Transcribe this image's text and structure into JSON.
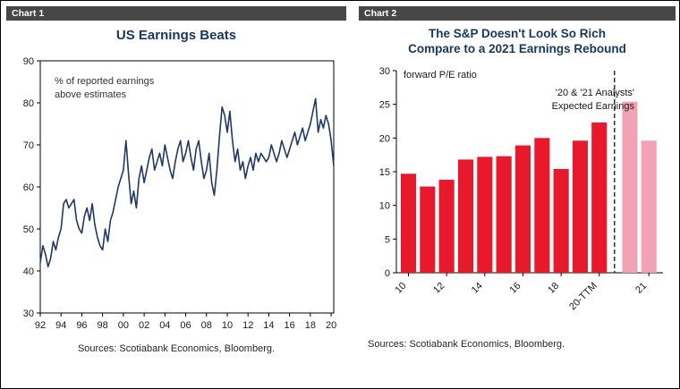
{
  "panels": [
    {
      "header": "Chart 1",
      "title": "US Earnings Beats",
      "source": "Sources: Scotiabank Economics, Bloomberg."
    },
    {
      "header": "Chart 2",
      "title_line1": "The S&P Doesn't Look So Rich",
      "title_line2": "Compare to a 2021 Earnings Rebound",
      "source": "Sources: Scotiabank Economics, Bloomberg."
    }
  ],
  "colors": {
    "banner_bg": "#474747",
    "banner_text": "#ffffff",
    "title_navy": "#17375D",
    "line_navy": "#1F3864",
    "bar_red": "#E8182D",
    "bar_pink": "#F1A3B5",
    "axis_black": "#000000"
  },
  "chart_data": [
    {
      "type": "line",
      "title": "US Earnings Beats",
      "annotation_lines": [
        "% of reported earnings",
        "above estimates"
      ],
      "ylim": [
        30,
        90
      ],
      "yticks": [
        30,
        40,
        50,
        60,
        70,
        80,
        90
      ],
      "xtick_labels": [
        "92",
        "94",
        "96",
        "98",
        "00",
        "02",
        "04",
        "06",
        "08",
        "10",
        "12",
        "14",
        "16",
        "18",
        "20"
      ],
      "points_per_tick": 8,
      "line_color": "#1F3864",
      "grid": false,
      "values": [
        42,
        46,
        44,
        41,
        43,
        47,
        45,
        48,
        50,
        56,
        57,
        55,
        56,
        57,
        52,
        50,
        49,
        53,
        55,
        52,
        56,
        51,
        48,
        46,
        45,
        50,
        47,
        52,
        54,
        57,
        60,
        62,
        64,
        71,
        63,
        56,
        59,
        55,
        62,
        65,
        61,
        64,
        67,
        69,
        64,
        66,
        68,
        65,
        70,
        67,
        64,
        62,
        66,
        69,
        71,
        66,
        68,
        71,
        67,
        64,
        69,
        71,
        66,
        62,
        64,
        68,
        61,
        58,
        64,
        72,
        79,
        77,
        73,
        78,
        71,
        66,
        69,
        64,
        66,
        62,
        65,
        67,
        64,
        68,
        66,
        68,
        67,
        66,
        67,
        70,
        68,
        66,
        68,
        71,
        69,
        67,
        69,
        71,
        73,
        70,
        72,
        74,
        71,
        73,
        75,
        78,
        81,
        73,
        76,
        74,
        77,
        75,
        71,
        65
      ]
    },
    {
      "type": "bar",
      "title": "The S&P Doesn't Look So Rich Compare to a 2021 Earnings Rebound",
      "ylabel": "forward P/E ratio",
      "annotation_lines": [
        "'20 & '21 Analysts'",
        "Expected Earnings"
      ],
      "ylim": [
        0,
        30
      ],
      "yticks": [
        0,
        5,
        10,
        15,
        20,
        25,
        30
      ],
      "values": [
        14.7,
        12.8,
        13.8,
        16.8,
        17.2,
        17.3,
        18.9,
        20.0,
        15.4,
        19.6,
        22.3,
        25.4,
        19.6
      ],
      "divider_after_index": 10,
      "pink_from_index": 11,
      "xticks": [
        {
          "bar_index": 0,
          "label": "10"
        },
        {
          "bar_index": 2,
          "label": "12"
        },
        {
          "bar_index": 4,
          "label": "14"
        },
        {
          "bar_index": 6,
          "label": "16"
        },
        {
          "bar_index": 8,
          "label": "18"
        },
        {
          "bar_index": 10,
          "label": "20-TTM"
        },
        {
          "bar_index": 12,
          "label": "21"
        }
      ],
      "grid": false,
      "legend": "none"
    }
  ]
}
